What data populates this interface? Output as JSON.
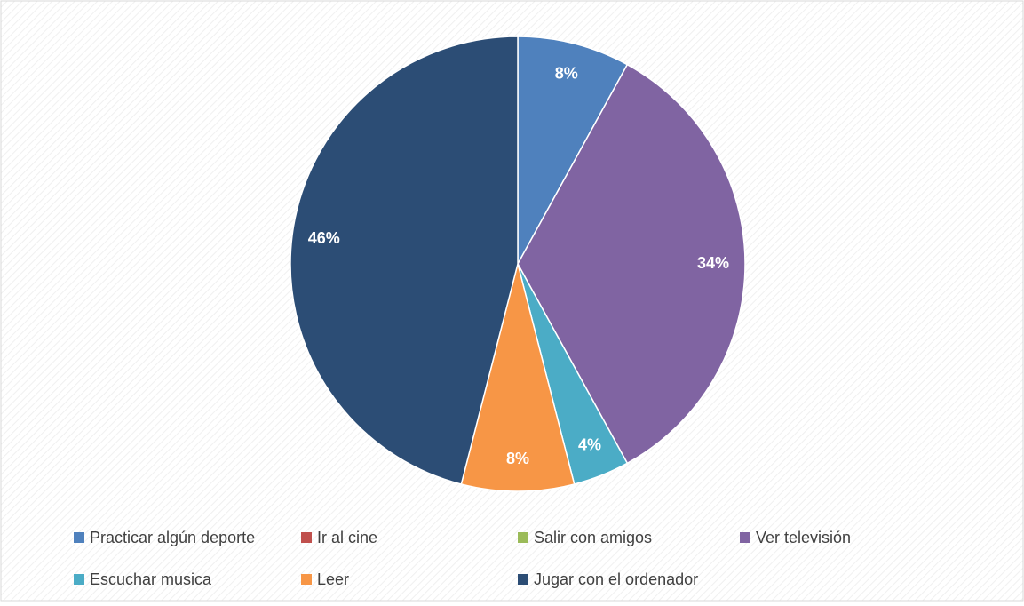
{
  "chart_data": {
    "type": "pie",
    "categories": [
      "Practicar algún deporte",
      "Ir al cine",
      "Salir con amigos",
      "Ver televisión",
      "Escuchar musica",
      "Leer",
      "Jugar con el ordenador"
    ],
    "values": [
      8,
      0,
      0,
      34,
      4,
      8,
      46
    ],
    "value_labels": [
      "8%",
      null,
      null,
      "34%",
      "4%",
      "8%",
      "46%"
    ],
    "colors": [
      "#4f81bd",
      "#c0504d",
      "#9bbb59",
      "#8064a2",
      "#4bacc6",
      "#f79646",
      "#2c4d75"
    ]
  }
}
